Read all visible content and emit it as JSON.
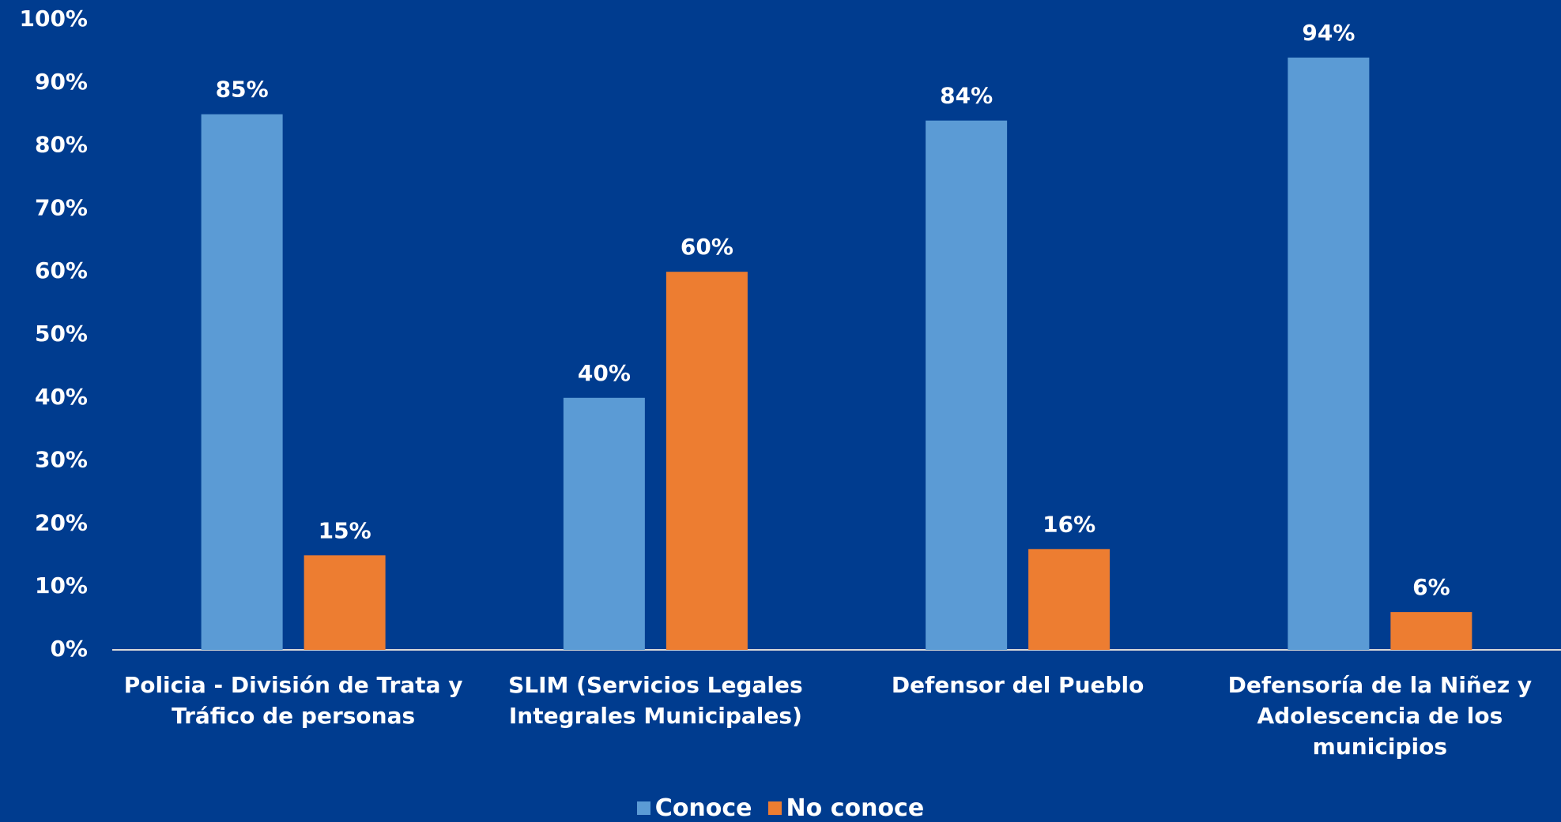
{
  "chart_data": {
    "type": "bar",
    "categories": [
      "Policia - División de Trata y Tráfico de personas",
      "SLIM (Servicios Legales Integrales Municipales)",
      "Defensor del Pueblo",
      "Defensoría de la Niñez y Adolescencia de los municipios"
    ],
    "series": [
      {
        "name": "Conoce",
        "color": "#5b9bd5",
        "values": [
          85,
          40,
          84,
          94
        ],
        "value_labels": [
          "85%",
          "40%",
          "84%",
          "94%"
        ]
      },
      {
        "name": "No conoce",
        "color": "#ed7d31",
        "values": [
          15,
          60,
          16,
          6
        ],
        "value_labels": [
          "15%",
          "60%",
          "16%",
          "6%"
        ]
      }
    ],
    "ylim": [
      0,
      100
    ],
    "yticks": [
      {
        "value": 0,
        "label": "0%"
      },
      {
        "value": 10,
        "label": "10%"
      },
      {
        "value": 20,
        "label": "20%"
      },
      {
        "value": 30,
        "label": "30%"
      },
      {
        "value": 40,
        "label": "40%"
      },
      {
        "value": 50,
        "label": "50%"
      },
      {
        "value": 60,
        "label": "60%"
      },
      {
        "value": 70,
        "label": "70%"
      },
      {
        "value": 80,
        "label": "80%"
      },
      {
        "value": 90,
        "label": "90%"
      },
      {
        "value": 100,
        "label": "100%"
      }
    ],
    "legend": "bottom"
  }
}
